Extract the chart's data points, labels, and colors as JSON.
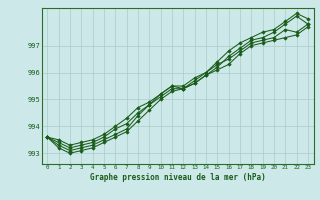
{
  "xlabel": "Graphe pression niveau de la mer (hPa)",
  "background_color": "#cce8e8",
  "grid_color": "#aacccc",
  "line_color": "#1a5c1a",
  "marker_color": "#1a5c1a",
  "xlim_min": -0.5,
  "xlim_max": 23.5,
  "ylim_min": 992.6,
  "ylim_max": 998.4,
  "yticks": [
    993,
    994,
    995,
    996,
    997
  ],
  "xticks": [
    0,
    1,
    2,
    3,
    4,
    5,
    6,
    7,
    8,
    9,
    10,
    11,
    12,
    13,
    14,
    15,
    16,
    17,
    18,
    19,
    20,
    21,
    22,
    23
  ],
  "series": [
    [
      993.6,
      993.5,
      993.3,
      993.4,
      993.5,
      993.7,
      994.0,
      994.3,
      994.7,
      994.9,
      995.2,
      995.5,
      995.4,
      995.7,
      996.0,
      996.4,
      996.8,
      997.1,
      997.3,
      997.5,
      997.6,
      997.9,
      998.2,
      998.0
    ],
    [
      993.6,
      993.4,
      993.2,
      993.3,
      993.4,
      993.6,
      993.9,
      994.1,
      994.5,
      994.8,
      995.1,
      995.4,
      995.4,
      995.6,
      995.9,
      996.2,
      996.6,
      996.9,
      997.2,
      997.3,
      997.5,
      997.8,
      998.1,
      997.8
    ],
    [
      993.6,
      993.3,
      993.1,
      993.2,
      993.3,
      993.5,
      993.7,
      993.9,
      994.4,
      994.8,
      995.2,
      995.5,
      995.5,
      995.8,
      996.0,
      996.3,
      996.5,
      996.8,
      997.1,
      997.2,
      997.3,
      997.6,
      997.5,
      997.8
    ],
    [
      993.6,
      993.2,
      993.0,
      993.1,
      993.2,
      993.4,
      993.6,
      993.8,
      994.2,
      994.6,
      995.0,
      995.3,
      995.4,
      995.6,
      995.9,
      996.1,
      996.3,
      996.7,
      997.0,
      997.1,
      997.2,
      997.3,
      997.4,
      997.7
    ]
  ]
}
